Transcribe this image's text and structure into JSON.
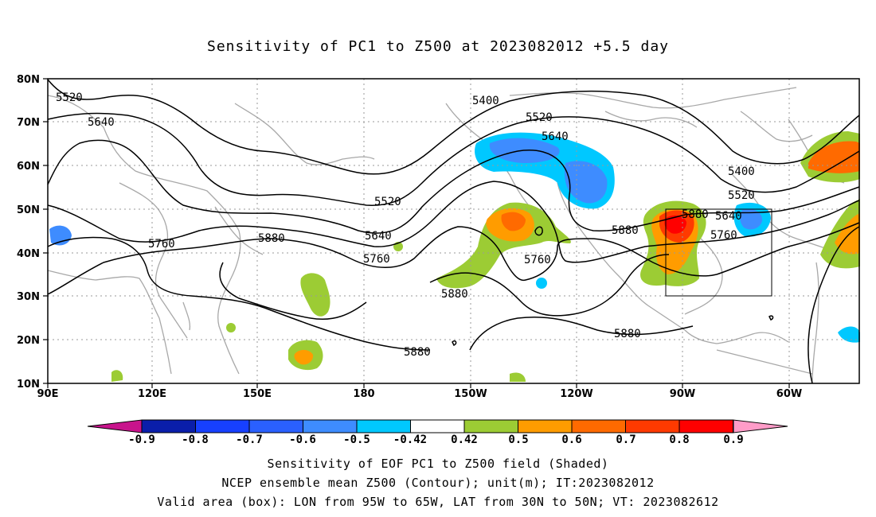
{
  "title": "Sensitivity of PC1 to Z500 at 2023082012 +5.5 day",
  "captions": [
    "Sensitivity of EOF PC1 to Z500 field (Shaded)",
    "NCEP ensemble mean Z500 (Contour); unit(m); IT:2023082012",
    "Valid area (box): LON from 95W to 65W, LAT from 30N to 50N; VT: 2023082612"
  ],
  "axes": {
    "x_ticks": [
      "90E",
      "120E",
      "150E",
      "180",
      "150W",
      "120W",
      "90W",
      "60W"
    ],
    "y_ticks": [
      "10N",
      "20N",
      "30N",
      "40N",
      "50N",
      "60N",
      "70N",
      "80N"
    ]
  },
  "contour_labels": [
    "5520",
    "5640",
    "5760",
    "5880",
    "5400",
    "5520",
    "5640",
    "5520",
    "5640",
    "5760",
    "5880",
    "5880",
    "5880",
    "5760",
    "5880",
    "5880",
    "5400",
    "5520",
    "5640",
    "5760"
  ],
  "colorbar": {
    "labels": [
      "-0.9",
      "-0.8",
      "-0.7",
      "-0.6",
      "-0.5",
      "-0.42",
      "0.42",
      "0.5",
      "0.6",
      "0.7",
      "0.8",
      "0.9"
    ],
    "colors": [
      "#0a1eaa",
      "#1740ff",
      "#2a60ff",
      "#3e8cff",
      "#00c8ff",
      "#ffffff",
      "#9ccc34",
      "#ff9c00",
      "#ff6a00",
      "#ff3a00",
      "#ff0000"
    ],
    "low_end_color": "#c8148c",
    "high_end_color": "#ff9cc8"
  },
  "valid_box": {
    "lon_min": "95W",
    "lon_max": "65W",
    "lat_min": "30N",
    "lat_max": "50N"
  }
}
